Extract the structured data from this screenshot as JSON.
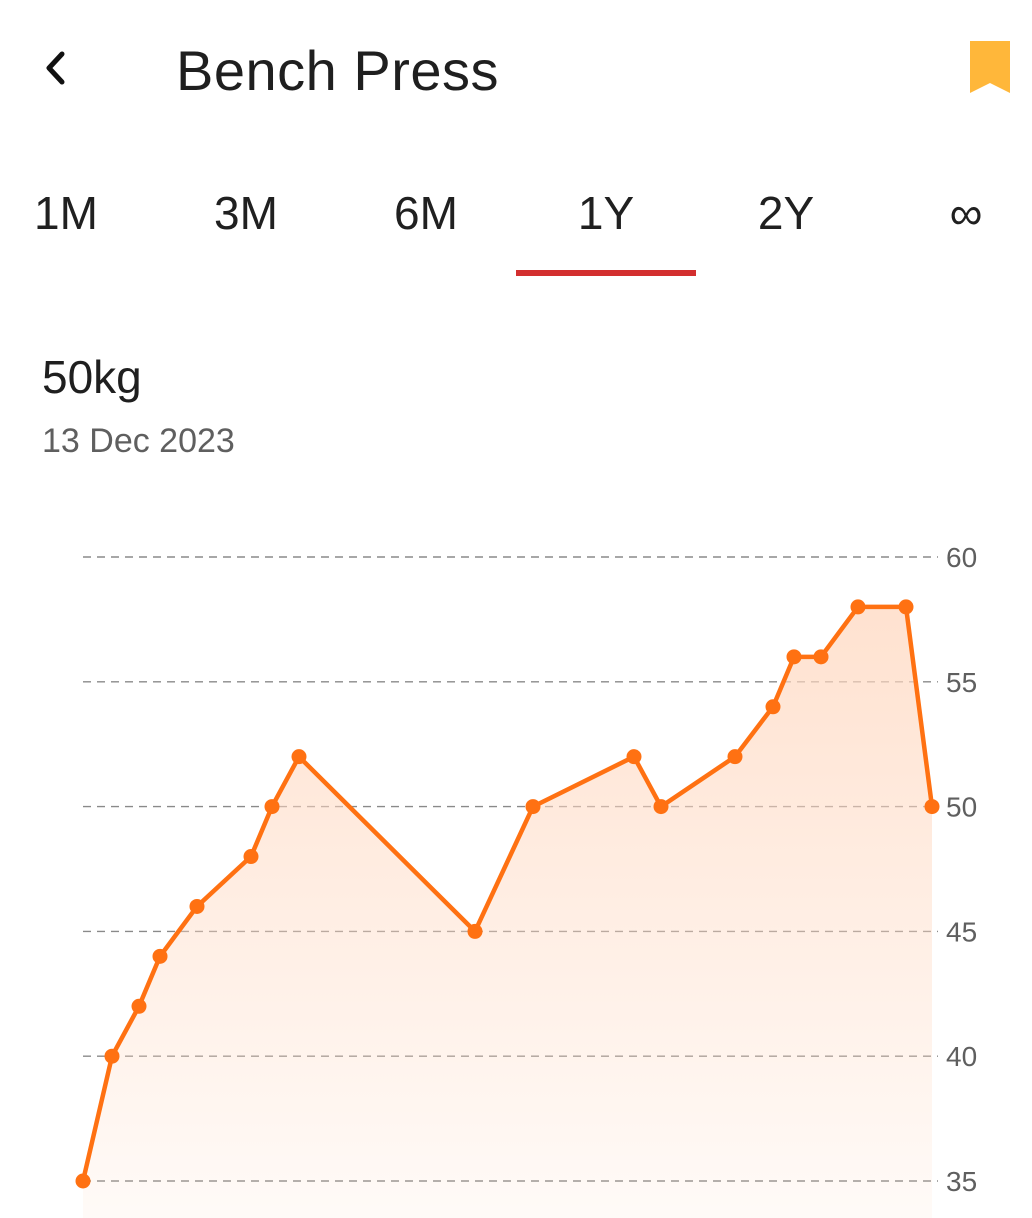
{
  "header": {
    "title": "Bench Press",
    "back_icon": "chevron-left-icon",
    "bookmark_icon": "bookmark-icon",
    "bookmark_color": "#ffb73a"
  },
  "tabs": [
    {
      "label": "1M",
      "active": false
    },
    {
      "label": "3M",
      "active": false
    },
    {
      "label": "6M",
      "active": false
    },
    {
      "label": "1Y",
      "active": true
    },
    {
      "label": "2Y",
      "active": false
    },
    {
      "label": "∞",
      "active": false
    }
  ],
  "accent_color": "#d32f2f",
  "summary": {
    "value": "50kg",
    "date": "13 Dec 2023"
  },
  "chart_data": {
    "type": "area",
    "line_color": "#ff7112",
    "fill_color": "#ffd8c0",
    "y_ticks": [
      60,
      55,
      50,
      45,
      40,
      35
    ],
    "ylim": [
      35,
      60
    ],
    "grid": "dashed horizontal",
    "y_axis_side": "right",
    "series": [
      {
        "values": [
          35,
          40,
          42,
          44,
          46,
          48,
          50,
          52,
          45,
          50,
          52,
          50,
          52,
          54,
          56,
          56,
          58,
          58,
          50
        ]
      }
    ]
  }
}
